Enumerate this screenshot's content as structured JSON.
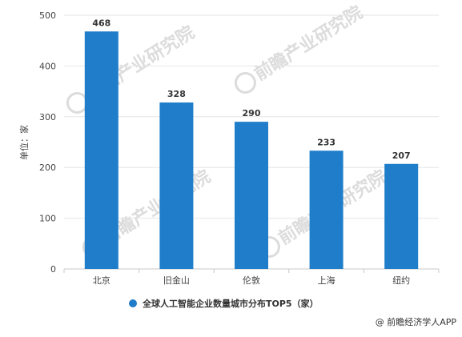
{
  "chart_data": {
    "type": "bar",
    "categories": [
      "北京",
      "旧金山",
      "伦敦",
      "上海",
      "纽约"
    ],
    "series": [
      {
        "name": "全球人工智能企业数量城市分布TOP5（家）",
        "values": [
          468,
          328,
          290,
          233,
          207
        ]
      }
    ],
    "ylabel": "单位：家",
    "xlabel": "",
    "ylim": [
      0,
      500
    ],
    "yticks": [
      0,
      100,
      200,
      300,
      400,
      500
    ],
    "grid": true,
    "legend_position": "bottom",
    "data_labels": true
  },
  "colors": {
    "bar": "#1f7dc9",
    "grid": "#e6e6e6",
    "axis": "#c8c8c8",
    "tick_text": "#444444",
    "label_text": "#333333",
    "watermark": "#dcdcdc"
  },
  "credit": "@ 前瞻经济学人APP",
  "watermark": {
    "brand": "前瞻产业研究院"
  }
}
